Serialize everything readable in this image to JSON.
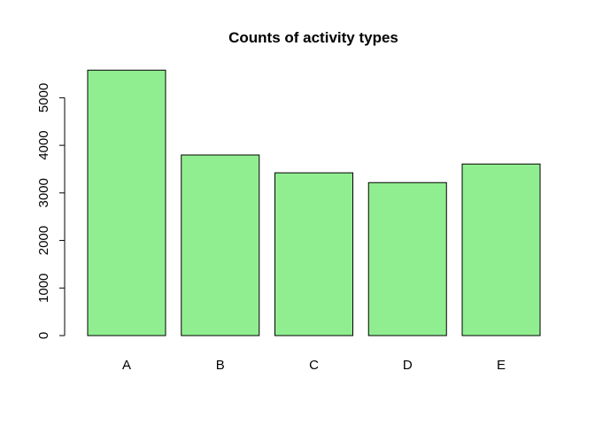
{
  "chart_data": {
    "type": "bar",
    "title": "Counts of activity types",
    "xlabel": "",
    "ylabel": "",
    "categories": [
      "A",
      "B",
      "C",
      "D",
      "E"
    ],
    "values": [
      5580,
      3797,
      3422,
      3216,
      3607
    ],
    "ylim": [
      0,
      5800
    ],
    "y_ticks": [
      0,
      1000,
      2000,
      3000,
      4000,
      5000
    ],
    "y_tick_labels": [
      "0",
      "1000",
      "2000",
      "3000",
      "4000",
      "5000"
    ],
    "bar_color": "#90EE90",
    "grid": false,
    "legend": "none"
  }
}
